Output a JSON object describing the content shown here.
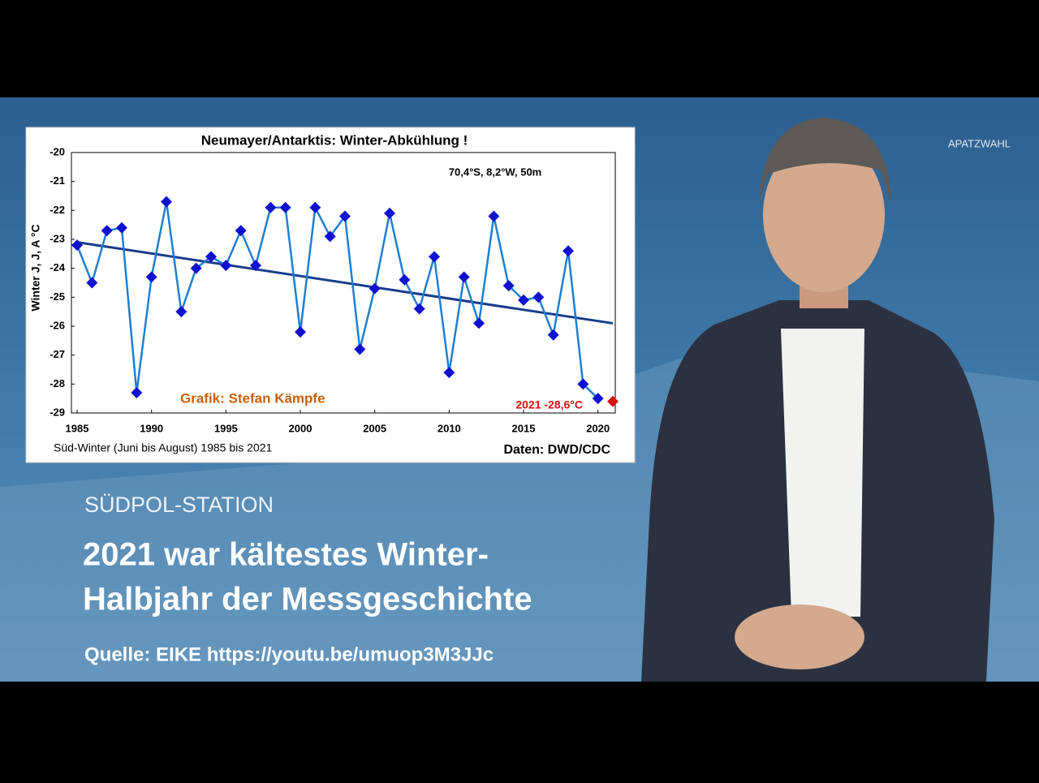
{
  "chart_data": {
    "type": "line",
    "title": "Neumayer/Antarktis:  Winter-Abkühlung  !",
    "location": "70,4°S, 8,2°W, 50m",
    "ylabel": "Winter J, J, A °C",
    "credit": "Grafik: Stefan Kämpfe",
    "caption": "Süd-Winter (Juni bis August) 1985 bis 2021",
    "source": "Daten: DWD/CDC",
    "color": "#1e7fd0",
    "marker_color": "#1010d0",
    "x": [
      1985,
      1986,
      1987,
      1988,
      1989,
      1990,
      1991,
      1992,
      1993,
      1994,
      1995,
      1996,
      1997,
      1998,
      1999,
      2000,
      2001,
      2002,
      2003,
      2004,
      2005,
      2006,
      2007,
      2008,
      2009,
      2010,
      2011,
      2012,
      2013,
      2014,
      2015,
      2016,
      2017,
      2018,
      2019,
      2020
    ],
    "values": [
      -23.2,
      -24.5,
      -22.7,
      -22.6,
      -28.3,
      -24.3,
      -21.7,
      -25.5,
      -24.0,
      -23.6,
      -23.9,
      -22.7,
      -23.9,
      -21.9,
      -21.9,
      -26.2,
      -21.9,
      -22.9,
      -22.2,
      -26.8,
      -24.7,
      -22.1,
      -24.4,
      -25.4,
      -23.6,
      -27.6,
      -24.3,
      -25.9,
      -22.2,
      -24.6,
      -25.1,
      -25.0,
      -26.3,
      -23.4,
      -28.0,
      -28.5
    ],
    "highlight": {
      "x": 2021,
      "value": -28.6,
      "label": "2021 -28,6°C",
      "color": "#d81010"
    },
    "trend": {
      "x": [
        1985,
        2021
      ],
      "values": [
        -23.1,
        -25.9
      ],
      "color": "#1a3c8c"
    },
    "xlim": [
      1985,
      2021
    ],
    "ylim": [
      -29,
      -20
    ],
    "xticks": [
      1985,
      1990,
      1995,
      2000,
      2005,
      2010,
      2015,
      2020
    ],
    "yticks": [
      -20,
      -21,
      -22,
      -23,
      -24,
      -25,
      -26,
      -27,
      -28,
      -29
    ]
  },
  "overlay": {
    "channel": "APATZWAHL",
    "kicker": "SÜDPOL-STATION",
    "headline": [
      "2021 war kältestes Winter-",
      "Halbjahr der Messgeschichte"
    ],
    "source": "Quelle: EIKE https://youtu.be/umuop3M3JJc"
  }
}
